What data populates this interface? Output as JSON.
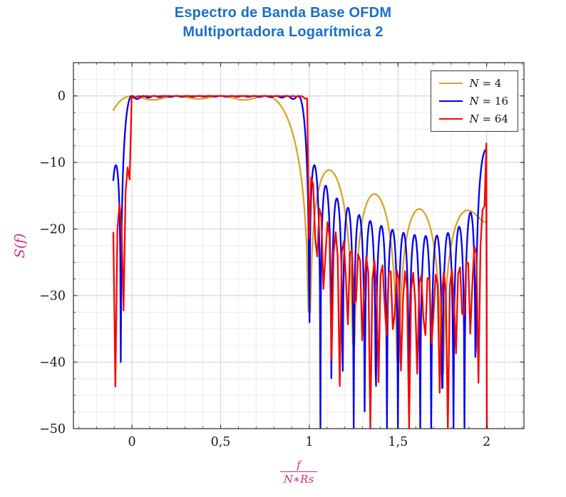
{
  "page": {
    "background": "#ffffff"
  },
  "title": {
    "line1": "Espectro de Banda Base OFDM",
    "line2": "Multiportadora Logarítmica 2",
    "color": "#1b6ec8"
  },
  "chart_data": {
    "type": "line",
    "title": "Espectro de Banda Base OFDM Multiportadora Logarítmica 2",
    "ylabel": "S(f)",
    "xlabel": "f / (N∗Rs)",
    "xlabel_numerator": "f",
    "xlabel_denominator": "N∗Rs",
    "axis_label_color": "#d02a7d",
    "xlim": [
      -0.33,
      2.21
    ],
    "ylim": [
      -50,
      5
    ],
    "x_ticks": [
      {
        "value": 0,
        "label": "0"
      },
      {
        "value": 0.5,
        "label": "0,5"
      },
      {
        "value": 1,
        "label": "1"
      },
      {
        "value": 1.5,
        "label": "1,5"
      },
      {
        "value": 2,
        "label": "2"
      }
    ],
    "y_ticks": [
      {
        "value": 0,
        "label": "0"
      },
      {
        "value": -10,
        "label": "−10"
      },
      {
        "value": -20,
        "label": "−20"
      },
      {
        "value": -30,
        "label": "−30"
      },
      {
        "value": -40,
        "label": "−40"
      },
      {
        "value": -50,
        "label": "−50"
      }
    ],
    "grid": {
      "minor_x_step": 0.1,
      "minor_y_step": 2.5,
      "major_color": "#d2d2d2",
      "minor_color": "#ebebeb"
    },
    "legend": {
      "position": "top-right",
      "border_color": "#3c3c3c",
      "background": "#ffffff"
    },
    "series": [
      {
        "name": "N = 4",
        "N": 4,
        "color": "#d9a427",
        "sample_step": 0.01,
        "replica_gain": 0.0126,
        "end_drop": false
      },
      {
        "name": "N = 16",
        "N": 16,
        "color": "#0000f2",
        "sample_step": 0.0028,
        "replica_gain": 0.158,
        "end_drop": true
      },
      {
        "name": "N = 64",
        "N": 64,
        "color": "#f50800",
        "sample_step": 0.0115,
        "replica_gain": 0.2,
        "end_drop": true
      }
    ],
    "model": {
      "description": "OFDM baseband spectrum per curve: S(x) = 10·log10( Σ_{k=0..N−1} sinc²(N·x − k) + g·Σ_{k=0..N−1} sinc²(N·(x−2) − k) ), x = f/(N·Rs), flat ≈0 dB over 0≤x≤1, sinc sidelobes outside band, spectral replica rising near x = 2, clipped at −50 dB",
      "x_start": -0.105,
      "x_end": 1.998,
      "floor_db": -50
    }
  }
}
